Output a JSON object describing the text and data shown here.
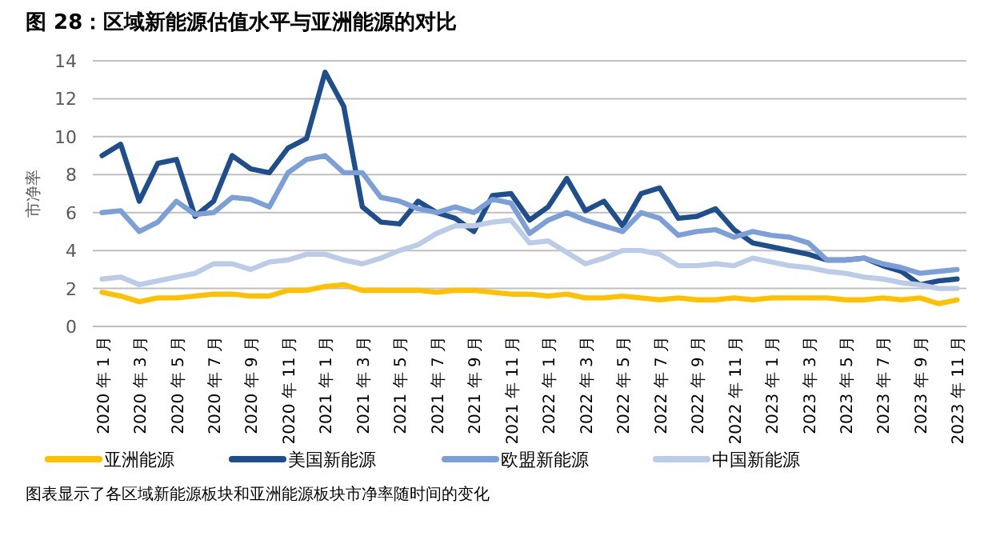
{
  "chart_data": {
    "type": "line",
    "title": "图 28：区域新能源估值水平与亚洲能源的对比",
    "ylabel": "市净率",
    "categories": [
      "2020 年 1 月",
      null,
      "2020 年 3 月",
      null,
      "2020 年 5 月",
      null,
      "2020 年 7 月",
      null,
      "2020 年 9 月",
      null,
      "2020 年 11 月",
      null,
      "2021 年 1 月",
      null,
      "2021 年 3 月",
      null,
      "2021 年 5 月",
      null,
      "2021 年 7 月",
      null,
      "2021 年 9 月",
      null,
      "2021 年 11 月",
      null,
      "2022 年 1 月",
      null,
      "2022 年 3 月",
      null,
      "2022 年 5 月",
      null,
      "2022 年 7 月",
      null,
      "2022 年 9 月",
      null,
      "2022 年 11 月",
      null,
      "2023 年 1 月",
      null,
      "2023 年 3 月",
      null,
      "2023 年 5 月",
      null,
      "2023 年 7 月",
      null,
      "2023 年 9 月",
      null,
      "2023 年 11 月"
    ],
    "series": [
      {
        "name": "亚洲能源",
        "color": "#ffc000",
        "values": [
          1.8,
          1.6,
          1.3,
          1.5,
          1.5,
          1.6,
          1.7,
          1.7,
          1.6,
          1.6,
          1.9,
          1.9,
          2.1,
          2.2,
          1.9,
          1.9,
          1.9,
          1.9,
          1.8,
          1.9,
          1.9,
          1.8,
          1.7,
          1.7,
          1.6,
          1.7,
          1.5,
          1.5,
          1.6,
          1.5,
          1.4,
          1.5,
          1.4,
          1.4,
          1.5,
          1.4,
          1.5,
          1.5,
          1.5,
          1.5,
          1.4,
          1.4,
          1.5,
          1.4,
          1.5,
          1.2,
          1.4
        ]
      },
      {
        "name": "美国新能源",
        "color": "#1f4e8c",
        "values": [
          9.0,
          9.6,
          6.6,
          8.6,
          8.8,
          5.8,
          6.6,
          9.0,
          8.3,
          8.1,
          9.4,
          9.9,
          13.4,
          11.6,
          6.3,
          5.5,
          5.4,
          6.6,
          6.0,
          5.7,
          5.0,
          6.9,
          7.0,
          5.6,
          6.3,
          7.8,
          6.1,
          6.6,
          5.3,
          7.0,
          7.3,
          5.7,
          5.8,
          6.2,
          5.1,
          4.4,
          4.2,
          4.0,
          3.8,
          3.5,
          3.5,
          3.6,
          3.2,
          2.9,
          2.2,
          2.4,
          2.5
        ]
      },
      {
        "name": "欧盟新能源",
        "color": "#7b9fd6",
        "values": [
          6.0,
          6.1,
          5.0,
          5.5,
          6.6,
          5.9,
          6.0,
          6.8,
          6.7,
          6.3,
          8.1,
          8.8,
          9.0,
          8.1,
          8.1,
          6.8,
          6.6,
          6.2,
          6.0,
          6.3,
          6.0,
          6.7,
          6.5,
          4.9,
          5.6,
          6.0,
          5.6,
          5.3,
          5.0,
          6.0,
          5.7,
          4.8,
          5.0,
          5.1,
          4.7,
          5.0,
          4.8,
          4.7,
          4.4,
          3.5,
          3.5,
          3.6,
          3.3,
          3.1,
          2.8,
          2.9,
          3.0
        ]
      },
      {
        "name": "中国新能源",
        "color": "#bccbe8",
        "values": [
          2.5,
          2.6,
          2.2,
          2.4,
          2.6,
          2.8,
          3.3,
          3.3,
          3.0,
          3.4,
          3.5,
          3.8,
          3.8,
          3.5,
          3.3,
          3.6,
          4.0,
          4.3,
          4.9,
          5.3,
          5.3,
          5.5,
          5.6,
          4.4,
          4.5,
          3.9,
          3.3,
          3.6,
          4.0,
          4.0,
          3.8,
          3.2,
          3.2,
          3.3,
          3.2,
          3.6,
          3.4,
          3.2,
          3.1,
          2.9,
          2.8,
          2.6,
          2.5,
          2.3,
          2.2,
          2.0,
          2.0
        ]
      }
    ],
    "ylim": [
      0,
      14
    ],
    "yticks": [
      0,
      2,
      4,
      6,
      8,
      10,
      12,
      14
    ],
    "grid": "y",
    "legend": "bottom",
    "line_style": "solid",
    "annotations": [
      "图表显示了各区域新能源板块和亚洲能源板块市净率随时间的变化"
    ]
  }
}
